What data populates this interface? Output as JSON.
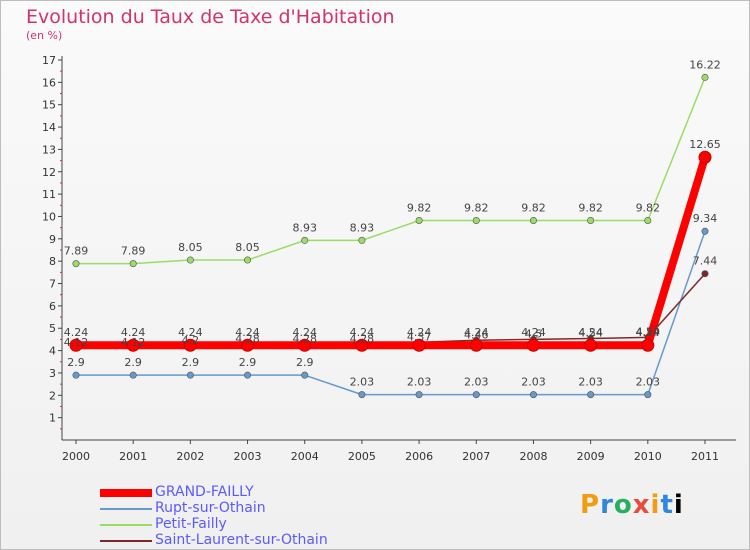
{
  "header": {
    "title": "Evolution du Taux de Taxe d'Habitation",
    "subtitle": "(en %)"
  },
  "logo": {
    "text": "Proxiti"
  },
  "chart_data": {
    "type": "line",
    "title": "Evolution du Taux de Taxe d'Habitation",
    "ylabel": "(en %)",
    "xlabel": "",
    "x": [
      "2000",
      "2001",
      "2002",
      "2003",
      "2004",
      "2005",
      "2006",
      "2007",
      "2008",
      "2009",
      "2010",
      "2011"
    ],
    "ylim": [
      0,
      17
    ],
    "yticks": [
      "1",
      "2",
      "3",
      "4",
      "5",
      "6",
      "7",
      "8",
      "9",
      "10",
      "11",
      "12",
      "13",
      "14",
      "15",
      "16",
      "17"
    ],
    "legend_position": "bottom-left",
    "series": [
      {
        "name": "GRAND-FAILLY",
        "color": "#ff0000",
        "values": [
          4.24,
          4.24,
          4.24,
          4.24,
          4.24,
          4.24,
          4.24,
          4.24,
          4.24,
          4.24,
          4.24,
          12.65
        ],
        "labels": [
          "4.24",
          "4.24",
          "4.24",
          "4.24",
          "4.24",
          "4.24",
          "4.24",
          "4.24",
          "4.24",
          "4.24",
          "4.24",
          "12.65"
        ]
      },
      {
        "name": "Rupt-sur-Othain",
        "color": "#6699cc",
        "values": [
          2.9,
          2.9,
          2.9,
          2.9,
          2.9,
          2.03,
          2.03,
          2.03,
          2.03,
          2.03,
          2.03,
          9.34
        ],
        "labels": [
          "2.9",
          "2.9",
          "2.9",
          "2.9",
          "2.9",
          "2.03",
          "2.03",
          "2.03",
          "2.03",
          "2.03",
          "2.03",
          "9.34"
        ]
      },
      {
        "name": "Petit-Failly",
        "color": "#99dd66",
        "values": [
          7.89,
          7.89,
          8.05,
          8.05,
          8.93,
          8.93,
          9.82,
          9.82,
          9.82,
          9.82,
          9.82,
          16.22
        ],
        "labels": [
          "7.89",
          "7.89",
          "8.05",
          "8.05",
          "8.93",
          "8.93",
          "9.82",
          "9.82",
          "9.82",
          "9.82",
          "9.82",
          "16.22"
        ]
      },
      {
        "name": "Saint-Laurent-sur-Othain",
        "color": "#7a2a2a",
        "values": [
          4.12,
          4.12,
          4.2,
          4.28,
          4.28,
          4.28,
          4.37,
          4.46,
          4.5,
          4.54,
          4.59,
          7.44
        ],
        "labels": [
          "4.12",
          "4.12",
          "4.2",
          "4.28",
          "4.28",
          "4.28",
          "4.37",
          "4.46",
          "4.5",
          "4.54",
          "4.59",
          "7.44"
        ]
      }
    ]
  }
}
